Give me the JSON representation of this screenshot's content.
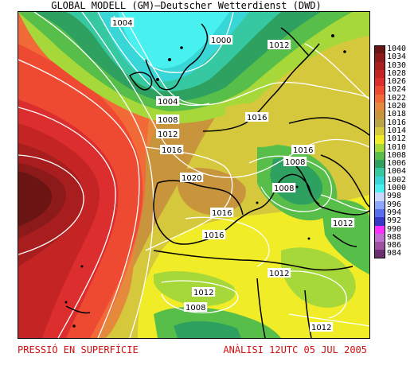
{
  "header": {
    "title": "GLOBAL MODELL (GM)—Deutscher Wetterdienst (DWD)"
  },
  "footer": {
    "product": "PRESSIÓ EN SUPERFÍCIE",
    "analysis": "ANÀLISI 12UTC 05 JUL 2005"
  },
  "legend": [
    {
      "label": "1040",
      "color": "#6a1414"
    },
    {
      "label": "1034",
      "color": "#8c1a1a"
    },
    {
      "label": "1030",
      "color": "#a81e1e"
    },
    {
      "label": "1028",
      "color": "#c42424"
    },
    {
      "label": "1026",
      "color": "#dc2e2e"
    },
    {
      "label": "1024",
      "color": "#ee4a32"
    },
    {
      "label": "1022",
      "color": "#f26a38"
    },
    {
      "label": "1020",
      "color": "#e5893c"
    },
    {
      "label": "1018",
      "color": "#c9953c"
    },
    {
      "label": "1016",
      "color": "#b9a548"
    },
    {
      "label": "1014",
      "color": "#d6c83c"
    },
    {
      "label": "1012",
      "color": "#f0ec28"
    },
    {
      "label": "1010",
      "color": "#a6d83a"
    },
    {
      "label": "1008",
      "color": "#58be4a"
    },
    {
      "label": "1006",
      "color": "#2ea060"
    },
    {
      "label": "1004",
      "color": "#36c8a0"
    },
    {
      "label": "1002",
      "color": "#38d6d6"
    },
    {
      "label": "1000",
      "color": "#48f0f0"
    },
    {
      "label": "998",
      "color": "#c8d8ff"
    },
    {
      "label": "996",
      "color": "#8aa6ff"
    },
    {
      "label": "994",
      "color": "#5a6ef0"
    },
    {
      "label": "992",
      "color": "#3838c8"
    },
    {
      "label": "990",
      "color": "#ff30ff"
    },
    {
      "label": "988",
      "color": "#c070d0"
    },
    {
      "label": "986",
      "color": "#a050a0"
    },
    {
      "label": "984",
      "color": "#6a3070"
    }
  ],
  "isobar_labels": [
    "1004",
    "1000",
    "1012",
    "1004",
    "1008",
    "1016",
    "1012",
    "1016",
    "1016",
    "1008",
    "1020",
    "1008",
    "1016",
    "1016",
    "1012",
    "1012",
    "1012",
    "1008",
    "1012"
  ]
}
